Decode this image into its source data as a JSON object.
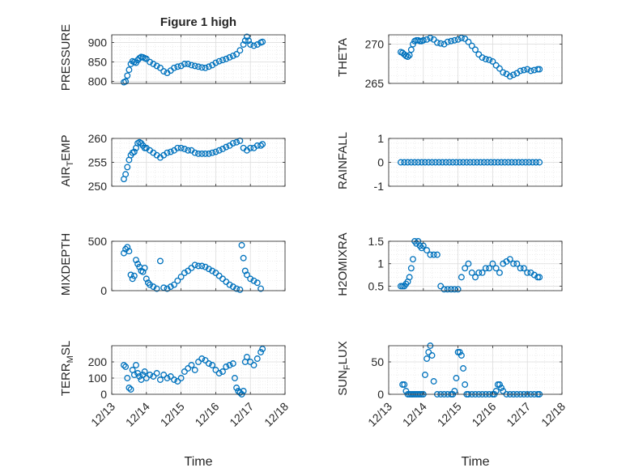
{
  "figure": {
    "title": "Figure 1 high",
    "xlabel": "Time",
    "x_tick_labels": [
      "12/13",
      "12/14",
      "12/15",
      "12/16",
      "12/17",
      "12/18"
    ],
    "marker_color": "#0072BD"
  },
  "chart_data": [
    {
      "type": "scatter",
      "ylabel": "PRESSURE",
      "ylim": [
        795,
        920
      ],
      "yticks": [
        800,
        850,
        900
      ],
      "grid": true,
      "x": [
        13.35,
        13.4,
        13.45,
        13.5,
        13.55,
        13.6,
        13.65,
        13.7,
        13.75,
        13.8,
        13.85,
        13.9,
        13.95,
        14.0,
        14.1,
        14.2,
        14.3,
        14.4,
        14.5,
        14.6,
        14.7,
        14.8,
        14.9,
        15.0,
        15.1,
        15.2,
        15.3,
        15.4,
        15.5,
        15.6,
        15.7,
        15.8,
        15.9,
        16.0,
        16.1,
        16.2,
        16.3,
        16.4,
        16.5,
        16.6,
        16.7,
        16.8,
        16.85,
        16.9,
        16.95,
        17.0,
        17.1,
        17.2,
        17.3,
        17.35
      ],
      "y": [
        798,
        800,
        815,
        830,
        845,
        852,
        850,
        848,
        855,
        860,
        863,
        862,
        860,
        858,
        850,
        845,
        840,
        835,
        826,
        822,
        828,
        835,
        838,
        840,
        845,
        845,
        842,
        840,
        838,
        836,
        835,
        838,
        842,
        848,
        852,
        855,
        858,
        862,
        866,
        870,
        880,
        895,
        905,
        915,
        905,
        895,
        892,
        895,
        900,
        902
      ]
    },
    {
      "type": "scatter",
      "ylabel": "THETA",
      "ylim": [
        265,
        271.2
      ],
      "yticks": [
        265,
        270
      ],
      "grid": true,
      "x": [
        13.35,
        13.4,
        13.45,
        13.5,
        13.55,
        13.6,
        13.65,
        13.7,
        13.75,
        13.8,
        13.85,
        13.9,
        13.95,
        14.0,
        14.1,
        14.2,
        14.3,
        14.4,
        14.5,
        14.6,
        14.7,
        14.8,
        14.9,
        15.0,
        15.1,
        15.2,
        15.3,
        15.4,
        15.5,
        15.6,
        15.7,
        15.8,
        15.9,
        16.0,
        16.1,
        16.2,
        16.3,
        16.4,
        16.5,
        16.6,
        16.7,
        16.8,
        16.9,
        17.0,
        17.1,
        17.2,
        17.3,
        17.35
      ],
      "y": [
        269.0,
        268.9,
        268.7,
        268.5,
        268.4,
        268.6,
        269.3,
        270.0,
        270.4,
        270.5,
        270.5,
        270.4,
        270.4,
        270.5,
        270.6,
        270.8,
        270.6,
        270.2,
        270.1,
        270.0,
        270.3,
        270.4,
        270.5,
        270.6,
        270.8,
        270.7,
        270.3,
        269.8,
        269.3,
        268.7,
        268.3,
        268.1,
        268.0,
        267.8,
        267.3,
        266.9,
        266.4,
        266.2,
        265.9,
        266.1,
        266.3,
        266.6,
        266.7,
        266.8,
        266.6,
        266.7,
        266.8,
        266.8
      ]
    },
    {
      "type": "scatter",
      "ylabel": "AIR_TEMP",
      "ylim": [
        250,
        260
      ],
      "yticks": [
        250,
        255,
        260
      ],
      "grid": true,
      "x": [
        13.35,
        13.4,
        13.45,
        13.5,
        13.55,
        13.6,
        13.65,
        13.7,
        13.75,
        13.8,
        13.85,
        13.9,
        13.95,
        14.0,
        14.1,
        14.2,
        14.3,
        14.4,
        14.5,
        14.6,
        14.7,
        14.8,
        14.9,
        15.0,
        15.1,
        15.2,
        15.3,
        15.4,
        15.5,
        15.6,
        15.7,
        15.8,
        15.9,
        16.0,
        16.1,
        16.2,
        16.3,
        16.4,
        16.5,
        16.6,
        16.7,
        16.8,
        16.9,
        17.0,
        17.1,
        17.2,
        17.3,
        17.35
      ],
      "y": [
        251.5,
        252.5,
        254.0,
        255.5,
        256.5,
        257.0,
        257.2,
        258.0,
        259.0,
        259.2,
        259.0,
        258.5,
        258.0,
        258.0,
        257.5,
        257.0,
        256.5,
        256.0,
        256.5,
        257.0,
        257.2,
        257.5,
        258.0,
        258.0,
        257.8,
        257.5,
        257.5,
        257.0,
        256.8,
        256.8,
        256.8,
        256.8,
        257.0,
        257.2,
        257.5,
        257.8,
        258.2,
        258.5,
        259.0,
        259.2,
        259.5,
        258.0,
        257.5,
        258.0,
        258.0,
        258.5,
        258.5,
        258.8
      ]
    },
    {
      "type": "scatter",
      "ylabel": "RAINFALL",
      "ylim": [
        -1,
        1
      ],
      "yticks": [
        -1,
        0,
        1
      ],
      "grid": true,
      "x": [
        13.35,
        13.45,
        13.55,
        13.65,
        13.75,
        13.85,
        13.95,
        14.05,
        14.15,
        14.25,
        14.35,
        14.45,
        14.55,
        14.65,
        14.75,
        14.85,
        14.95,
        15.05,
        15.15,
        15.25,
        15.35,
        15.45,
        15.55,
        15.65,
        15.75,
        15.85,
        15.95,
        16.05,
        16.15,
        16.25,
        16.35,
        16.45,
        16.55,
        16.65,
        16.75,
        16.85,
        16.95,
        17.05,
        17.15,
        17.25,
        17.35
      ],
      "y": [
        0,
        0,
        0,
        0,
        0,
        0,
        0,
        0,
        0,
        0,
        0,
        0,
        0,
        0,
        0,
        0,
        0,
        0,
        0,
        0,
        0,
        0,
        0,
        0,
        0,
        0,
        0,
        0,
        0,
        0,
        0,
        0,
        0,
        0,
        0,
        0,
        0,
        0,
        0,
        0,
        0
      ]
    },
    {
      "type": "scatter",
      "ylabel": "MIXDEPTH",
      "ylim": [
        0,
        500
      ],
      "yticks": [
        0,
        500
      ],
      "grid": true,
      "x": [
        13.35,
        13.4,
        13.45,
        13.5,
        13.55,
        13.6,
        13.65,
        13.7,
        13.75,
        13.8,
        13.85,
        13.9,
        13.95,
        14.0,
        14.05,
        14.1,
        14.2,
        14.3,
        14.4,
        14.5,
        14.6,
        14.7,
        14.8,
        14.9,
        15.0,
        15.1,
        15.2,
        15.3,
        15.4,
        15.5,
        15.6,
        15.7,
        15.8,
        15.9,
        16.0,
        16.1,
        16.2,
        16.3,
        16.4,
        16.5,
        16.6,
        16.7,
        16.75,
        16.8,
        16.85,
        16.9,
        17.0,
        17.1,
        17.2,
        17.3
      ],
      "y": [
        380,
        420,
        440,
        400,
        160,
        120,
        150,
        310,
        270,
        240,
        200,
        190,
        230,
        120,
        80,
        60,
        40,
        20,
        300,
        30,
        20,
        40,
        60,
        100,
        140,
        180,
        200,
        230,
        260,
        250,
        250,
        240,
        220,
        200,
        180,
        150,
        120,
        90,
        60,
        40,
        20,
        10,
        460,
        330,
        200,
        160,
        120,
        100,
        80,
        20
      ]
    },
    {
      "type": "scatter",
      "ylabel": "H2OMIXRA",
      "ylim": [
        0.4,
        1.5
      ],
      "yticks": [
        0.5,
        1,
        1.5
      ],
      "grid": true,
      "x": [
        13.35,
        13.4,
        13.45,
        13.5,
        13.55,
        13.6,
        13.65,
        13.7,
        13.75,
        13.8,
        13.85,
        13.9,
        13.95,
        14.0,
        14.1,
        14.2,
        14.3,
        14.4,
        14.5,
        14.6,
        14.7,
        14.8,
        14.9,
        15.0,
        15.1,
        15.2,
        15.3,
        15.4,
        15.5,
        15.6,
        15.7,
        15.8,
        15.9,
        16.0,
        16.1,
        16.2,
        16.3,
        16.4,
        16.5,
        16.6,
        16.7,
        16.8,
        16.9,
        17.0,
        17.1,
        17.2,
        17.3,
        17.35
      ],
      "y": [
        0.5,
        0.5,
        0.5,
        0.55,
        0.6,
        0.7,
        0.9,
        1.1,
        1.5,
        1.45,
        1.5,
        1.4,
        1.35,
        1.4,
        1.3,
        1.2,
        1.2,
        1.2,
        0.5,
        0.43,
        0.43,
        0.43,
        0.43,
        0.43,
        0.7,
        0.9,
        1.0,
        0.8,
        0.7,
        0.8,
        0.8,
        0.9,
        0.9,
        1.0,
        0.9,
        0.8,
        1.0,
        1.05,
        1.1,
        1.0,
        1.0,
        0.9,
        0.9,
        0.8,
        0.8,
        0.75,
        0.7,
        0.7
      ]
    },
    {
      "type": "scatter",
      "ylabel": "TERR_MSL",
      "ylim": [
        0,
        300
      ],
      "yticks": [
        0,
        100,
        200
      ],
      "grid": true,
      "x": [
        13.35,
        13.4,
        13.45,
        13.5,
        13.55,
        13.6,
        13.65,
        13.7,
        13.75,
        13.8,
        13.85,
        13.9,
        13.95,
        14.0,
        14.1,
        14.2,
        14.3,
        14.4,
        14.5,
        14.6,
        14.7,
        14.8,
        14.9,
        15.0,
        15.1,
        15.2,
        15.3,
        15.4,
        15.5,
        15.6,
        15.7,
        15.8,
        15.9,
        16.0,
        16.1,
        16.2,
        16.3,
        16.4,
        16.5,
        16.55,
        16.6,
        16.65,
        16.7,
        16.75,
        16.8,
        16.85,
        16.9,
        17.0,
        17.1,
        17.2,
        17.3,
        17.35
      ],
      "y": [
        180,
        170,
        100,
        40,
        30,
        150,
        120,
        180,
        130,
        110,
        90,
        120,
        140,
        100,
        120,
        110,
        130,
        90,
        120,
        100,
        110,
        90,
        80,
        100,
        140,
        160,
        180,
        150,
        200,
        220,
        210,
        190,
        180,
        150,
        130,
        140,
        170,
        180,
        190,
        100,
        40,
        20,
        10,
        0,
        20,
        200,
        230,
        200,
        180,
        220,
        260,
        280
      ]
    },
    {
      "type": "scatter",
      "ylabel": "SUN_FLUX",
      "ylim": [
        0,
        75
      ],
      "yticks": [
        0,
        50
      ],
      "grid": true,
      "x": [
        13.4,
        13.45,
        13.5,
        13.55,
        13.6,
        13.65,
        13.7,
        13.75,
        13.8,
        13.85,
        13.9,
        13.95,
        14.0,
        14.05,
        14.1,
        14.15,
        14.2,
        14.25,
        14.3,
        14.4,
        14.5,
        14.6,
        14.7,
        14.8,
        14.85,
        14.9,
        14.95,
        15.0,
        15.05,
        15.1,
        15.15,
        15.2,
        15.25,
        15.3,
        15.4,
        15.5,
        15.6,
        15.7,
        15.8,
        15.9,
        16.0,
        16.05,
        16.1,
        16.15,
        16.2,
        16.25,
        16.3,
        16.4,
        16.5,
        16.6,
        16.7,
        16.8,
        16.9,
        17.0,
        17.1,
        17.2,
        17.3,
        17.35
      ],
      "y": [
        15,
        15,
        5,
        0,
        0,
        0,
        0,
        0,
        0,
        0,
        0,
        0,
        0,
        30,
        55,
        65,
        75,
        60,
        20,
        0,
        0,
        0,
        0,
        0,
        0,
        5,
        25,
        65,
        65,
        60,
        40,
        15,
        0,
        0,
        0,
        0,
        0,
        0,
        0,
        0,
        0,
        0,
        5,
        15,
        15,
        10,
        5,
        0,
        0,
        0,
        0,
        0,
        0,
        0,
        0,
        0,
        0,
        0
      ]
    }
  ]
}
